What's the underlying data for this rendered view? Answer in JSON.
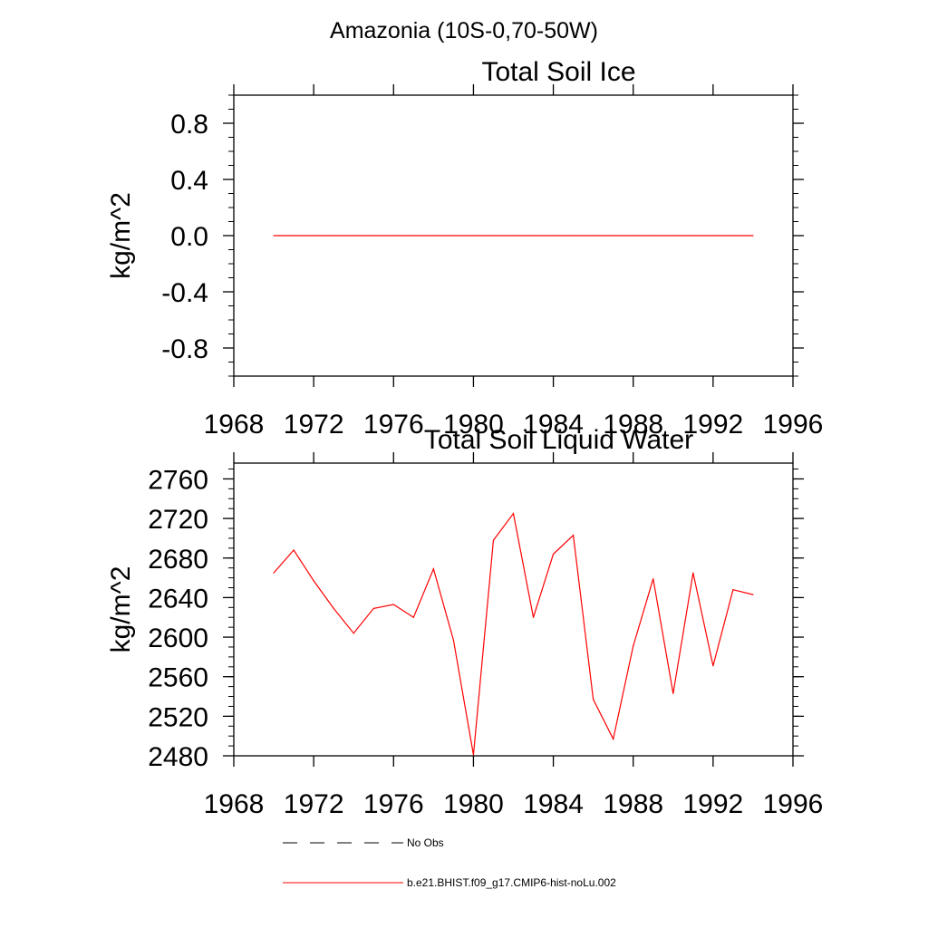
{
  "figure": {
    "suptitle": "Amazonia (10S-0,70-50W)"
  },
  "chart_data": [
    {
      "type": "line",
      "title": "Total Soil Ice",
      "xlabel": "",
      "ylabel": "kg/m^2",
      "xlim": [
        1968,
        1996
      ],
      "ylim": [
        -1.0,
        1.0
      ],
      "x_ticks": [
        1968,
        1972,
        1976,
        1980,
        1984,
        1988,
        1992,
        1996
      ],
      "y_ticks": [
        0.8,
        0.4,
        0.0,
        -0.4,
        -0.8
      ],
      "y_tick_labels": [
        "0.8",
        "0.4",
        "0.0",
        "-0.4",
        "-0.8"
      ],
      "x": [
        1970,
        1971,
        1972,
        1973,
        1974,
        1975,
        1976,
        1977,
        1978,
        1979,
        1980,
        1981,
        1982,
        1983,
        1984,
        1985,
        1986,
        1987,
        1988,
        1989,
        1990,
        1991,
        1992,
        1993,
        1994
      ],
      "series": [
        {
          "name": "b.e21.BHIST.f09_g17.CMIP6-hist-noLu.002",
          "color": "#ff0000",
          "values": [
            0,
            0,
            0,
            0,
            0,
            0,
            0,
            0,
            0,
            0,
            0,
            0,
            0,
            0,
            0,
            0,
            0,
            0,
            0,
            0,
            0,
            0,
            0,
            0,
            0
          ]
        }
      ],
      "grid": false
    },
    {
      "type": "line",
      "title": "Total Soil Liquid Water",
      "xlabel": "",
      "ylabel": "kg/m^2",
      "xlim": [
        1968,
        1996
      ],
      "ylim": [
        2480,
        2776
      ],
      "x_ticks": [
        1968,
        1972,
        1976,
        1980,
        1984,
        1988,
        1992,
        1996
      ],
      "y_ticks": [
        2760,
        2720,
        2680,
        2640,
        2600,
        2560,
        2520,
        2480
      ],
      "y_tick_labels": [
        "2760",
        "2720",
        "2680",
        "2640",
        "2600",
        "2560",
        "2520",
        "2480"
      ],
      "x": [
        1970,
        1971,
        1972,
        1973,
        1974,
        1975,
        1976,
        1977,
        1978,
        1979,
        1980,
        1981,
        1982,
        1983,
        1984,
        1985,
        1986,
        1987,
        1988,
        1989,
        1990,
        1991,
        1992,
        1993,
        1994
      ],
      "series": [
        {
          "name": "b.e21.BHIST.f09_g17.CMIP6-hist-noLu.002",
          "color": "#ff0000",
          "values": [
            2665,
            2688,
            2657,
            2629,
            2604,
            2629,
            2633,
            2620,
            2669,
            2597,
            2481,
            2698,
            2725,
            2620,
            2684,
            2703,
            2537,
            2497,
            2591,
            2659,
            2543,
            2665,
            2571,
            2648,
            2643
          ]
        }
      ],
      "grid": false
    }
  ],
  "legend": {
    "items": [
      {
        "label": "No Obs",
        "style": "dashed",
        "color": "#000000"
      },
      {
        "label": "b.e21.BHIST.f09_g17.CMIP6-hist-noLu.002",
        "style": "solid",
        "color": "#ff0000"
      }
    ]
  }
}
